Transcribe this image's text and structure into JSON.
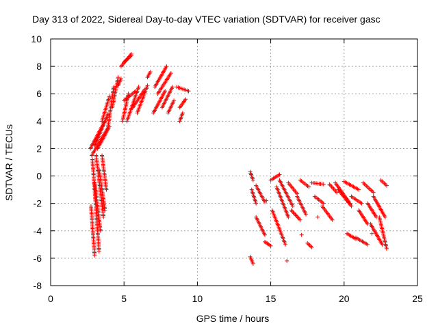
{
  "chart_data": {
    "type": "scatter",
    "title": "Day 313 of 2022, Sidereal Day-to-day VTEC variation (SDTVAR) for receiver gasc",
    "xlabel": "GPS time / hours",
    "ylabel": "SDTVAR / TECUs",
    "xlim": [
      0,
      25
    ],
    "ylim": [
      -8,
      10
    ],
    "x_ticks": [
      0,
      5,
      10,
      15,
      20,
      25
    ],
    "y_ticks": [
      -8,
      -6,
      -4,
      -2,
      0,
      2,
      4,
      6,
      8,
      10
    ],
    "x_tick_labels": [
      "0",
      "5",
      "10",
      "15",
      "20",
      "25"
    ],
    "y_tick_labels": [
      "-8",
      "-6",
      "-4",
      "-2",
      "0",
      "2",
      "4",
      "6",
      "8",
      "10"
    ],
    "grid": true,
    "marker": "+",
    "color": "#ff0000",
    "series": [
      {
        "name": "SDTVAR",
        "tracks": [
          {
            "x": [
              2.75,
              3.0
            ],
            "y": [
              -2.2,
              -5.8
            ]
          },
          {
            "x": [
              2.85,
              3.3
            ],
            "y": [
              1.2,
              -5.5
            ]
          },
          {
            "x": [
              3.0,
              3.4
            ],
            "y": [
              -0.5,
              -4.0
            ]
          },
          {
            "x": [
              3.1,
              3.6
            ],
            "y": [
              1.5,
              -3.0
            ]
          },
          {
            "x": [
              3.3,
              3.7
            ],
            "y": [
              0.5,
              -2.5
            ]
          },
          {
            "x": [
              3.5,
              3.8
            ],
            "y": [
              1.5,
              -1.0
            ]
          },
          {
            "x": [
              2.7,
              3.7
            ],
            "y": [
              2.0,
              4.0
            ]
          },
          {
            "x": [
              2.8,
              3.9
            ],
            "y": [
              1.5,
              3.5
            ]
          },
          {
            "x": [
              3.0,
              3.9
            ],
            "y": [
              2.2,
              4.5
            ]
          },
          {
            "x": [
              3.2,
              4.0
            ],
            "y": [
              2.0,
              3.6
            ]
          },
          {
            "x": [
              3.5,
              4.0
            ],
            "y": [
              4.0,
              5.8
            ]
          },
          {
            "x": [
              3.9,
              4.3
            ],
            "y": [
              3.5,
              6.5
            ]
          },
          {
            "x": [
              4.2,
              4.6
            ],
            "y": [
              5.0,
              7.2
            ]
          },
          {
            "x": [
              4.6,
              4.8
            ],
            "y": [
              6.6,
              7.1
            ]
          },
          {
            "x": [
              4.8,
              5.5
            ],
            "y": [
              8.0,
              8.9
            ]
          },
          {
            "x": [
              5.0,
              5.5
            ],
            "y": [
              8.3,
              8.8
            ]
          },
          {
            "x": [
              4.9,
              5.3
            ],
            "y": [
              4.0,
              6.0
            ]
          },
          {
            "x": [
              5.0,
              5.8
            ],
            "y": [
              5.5,
              6.2
            ]
          },
          {
            "x": [
              5.2,
              6.0
            ],
            "y": [
              4.0,
              6.5
            ]
          },
          {
            "x": [
              5.6,
              6.4
            ],
            "y": [
              5.0,
              6.3
            ]
          },
          {
            "x": [
              5.9,
              6.6
            ],
            "y": [
              4.6,
              6.6
            ]
          },
          {
            "x": [
              6.6,
              6.8
            ],
            "y": [
              7.2,
              7.6
            ]
          },
          {
            "x": [
              7.0,
              7.8
            ],
            "y": [
              4.6,
              6.2
            ]
          },
          {
            "x": [
              7.1,
              7.9
            ],
            "y": [
              6.5,
              8.0
            ]
          },
          {
            "x": [
              7.3,
              8.2
            ],
            "y": [
              6.0,
              7.5
            ]
          },
          {
            "x": [
              7.6,
              8.3
            ],
            "y": [
              5.0,
              6.5
            ]
          },
          {
            "x": [
              8.0,
              8.4
            ],
            "y": [
              4.6,
              5.5
            ]
          },
          {
            "x": [
              8.6,
              9.4
            ],
            "y": [
              6.5,
              6.2
            ]
          },
          {
            "x": [
              8.8,
              9.2
            ],
            "y": [
              5.0,
              5.6
            ]
          },
          {
            "x": [
              8.8,
              9.0
            ],
            "y": [
              4.0,
              4.6
            ]
          },
          {
            "x": [
              13.6,
              13.8
            ],
            "y": [
              0.3,
              -0.3
            ]
          },
          {
            "x": [
              13.7,
              14.0
            ],
            "y": [
              -1.0,
              -2.0
            ]
          },
          {
            "x": [
              13.6,
              13.8
            ],
            "y": [
              -5.9,
              -6.4
            ]
          },
          {
            "x": [
              14.0,
              14.6
            ],
            "y": [
              -0.7,
              -1.9
            ]
          },
          {
            "x": [
              14.0,
              14.6
            ],
            "y": [
              -3.0,
              -4.3
            ]
          },
          {
            "x": [
              14.6,
              15.0
            ],
            "y": [
              -4.8,
              -5.1
            ]
          },
          {
            "x": [
              15.0,
              15.6
            ],
            "y": [
              -0.3,
              0.1
            ]
          },
          {
            "x": [
              15.1,
              16.0
            ],
            "y": [
              -2.5,
              -5.0
            ]
          },
          {
            "x": [
              15.4,
              16.2
            ],
            "y": [
              -0.8,
              -3.0
            ]
          },
          {
            "x": [
              15.6,
              16.5
            ],
            "y": [
              -0.3,
              -2.2
            ]
          },
          {
            "x": [
              16.2,
              16.8
            ],
            "y": [
              -0.5,
              -1.3
            ]
          },
          {
            "x": [
              16.4,
              17.0
            ],
            "y": [
              -2.5,
              -3.2
            ]
          },
          {
            "x": [
              16.8,
              17.4
            ],
            "y": [
              -1.5,
              -2.8
            ]
          },
          {
            "x": [
              17.0,
              17.6
            ],
            "y": [
              -0.3,
              -0.8
            ]
          },
          {
            "x": [
              17.5,
              17.8
            ],
            "y": [
              -4.9,
              -5.2
            ]
          },
          {
            "x": [
              17.8,
              18.6
            ],
            "y": [
              -0.5,
              -0.6
            ]
          },
          {
            "x": [
              18.0,
              18.6
            ],
            "y": [
              -1.5,
              -2.0
            ]
          },
          {
            "x": [
              18.5,
              19.2
            ],
            "y": [
              -2.2,
              -3.2
            ]
          },
          {
            "x": [
              19.0,
              19.5
            ],
            "y": [
              -0.6,
              -1.2
            ]
          },
          {
            "x": [
              19.4,
              20.4
            ],
            "y": [
              -0.5,
              -2.0
            ]
          },
          {
            "x": [
              19.6,
              20.5
            ],
            "y": [
              -1.0,
              -2.2
            ]
          },
          {
            "x": [
              20.0,
              21.0
            ],
            "y": [
              -0.4,
              -1.0
            ]
          },
          {
            "x": [
              20.2,
              20.8
            ],
            "y": [
              -4.2,
              -4.6
            ]
          },
          {
            "x": [
              20.5,
              21.2
            ],
            "y": [
              -1.5,
              -2.0
            ]
          },
          {
            "x": [
              20.8,
              21.6
            ],
            "y": [
              -4.5,
              -5.0
            ]
          },
          {
            "x": [
              21.0,
              21.6
            ],
            "y": [
              -2.5,
              -3.5
            ]
          },
          {
            "x": [
              21.3,
              22.0
            ],
            "y": [
              -0.5,
              -1.2
            ]
          },
          {
            "x": [
              21.6,
              22.2
            ],
            "y": [
              -2.0,
              -3.0
            ]
          },
          {
            "x": [
              21.8,
              22.6
            ],
            "y": [
              -3.5,
              -5.0
            ]
          },
          {
            "x": [
              22.0,
              22.8
            ],
            "y": [
              -1.5,
              -3.0
            ]
          },
          {
            "x": [
              22.4,
              22.9
            ],
            "y": [
              -3.0,
              -5.3
            ]
          },
          {
            "x": [
              22.5,
              22.9
            ],
            "y": [
              -0.3,
              -0.7
            ]
          }
        ],
        "points": [
          {
            "x": 14.7,
            "y": -1.8
          },
          {
            "x": 16.1,
            "y": -6.2
          },
          {
            "x": 17.1,
            "y": -4.3
          },
          {
            "x": 18.2,
            "y": -3.0
          },
          {
            "x": 21.9,
            "y": -4.2
          }
        ]
      }
    ]
  }
}
